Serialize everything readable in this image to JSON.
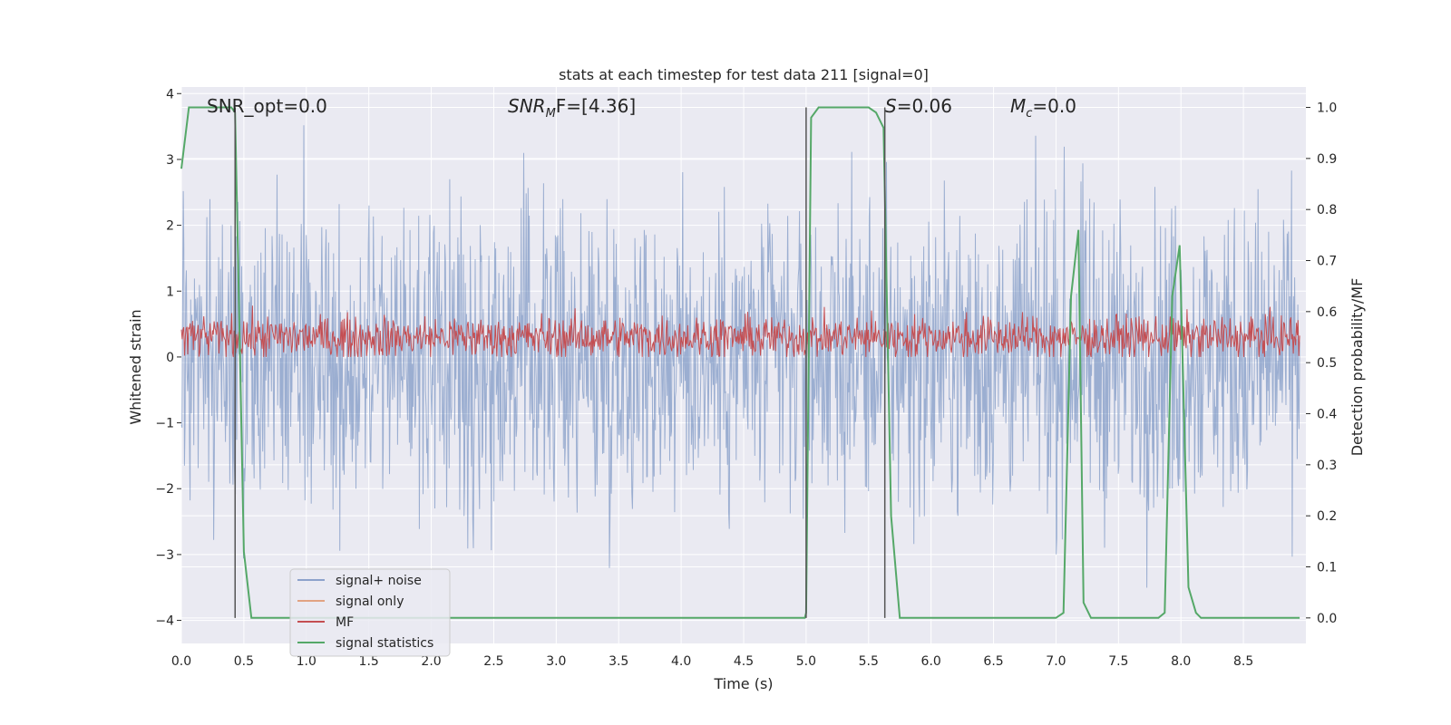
{
  "chart_data": {
    "type": "line",
    "title": "stats at each timestep for test data 211 [signal=0]",
    "xlabel": "Time (s)",
    "ylabel_left": "Whitened strain",
    "ylabel_right": "Detection probability/MF",
    "xlim": [
      0.0,
      9.0
    ],
    "ylim_left": [
      -4.35,
      4.1
    ],
    "ylim_right": [
      -0.05,
      1.04
    ],
    "grid": true,
    "background": "#eaeaf2",
    "x_ticks": [
      "0.0",
      "0.5",
      "1.0",
      "1.5",
      "2.0",
      "2.5",
      "3.0",
      "3.5",
      "4.0",
      "4.5",
      "5.0",
      "5.5",
      "6.0",
      "6.5",
      "7.0",
      "7.5",
      "8.0",
      "8.5"
    ],
    "y_ticks_left": [
      "−4",
      "−3",
      "−2",
      "−1",
      "0",
      "1",
      "2",
      "3",
      "4"
    ],
    "y_ticks_right": [
      "0.0",
      "0.1",
      "0.2",
      "0.3",
      "0.4",
      "0.5",
      "0.6",
      "0.7",
      "0.8",
      "0.9",
      "1.0"
    ],
    "annotations": {
      "snr_opt": "SNR_opt=0.0",
      "snr_mf_main": "SNR",
      "snr_mf_sub": "M",
      "snr_mf_tail": "F=[4.36]",
      "s_var": "S",
      "s_tail": "=0.06",
      "mc_var": "M",
      "mc_sub": "c",
      "mc_tail": "=0.0"
    },
    "vertical_lines": [
      0.43,
      5.0,
      5.63
    ],
    "series": [
      {
        "name": "signal+ noise",
        "color": "#4c72b0",
        "axis": "left",
        "range_approx": [
          -3.7,
          3.8
        ]
      },
      {
        "name": "signal only",
        "color": "#dd8452",
        "axis": "left",
        "values": []
      },
      {
        "name": "MF",
        "color": "#c44e52",
        "axis": "left",
        "range_approx": [
          0.0,
          0.85
        ]
      },
      {
        "name": "signal statistics",
        "color": "#55a868",
        "axis": "right",
        "x": [
          0.0,
          0.06,
          0.4,
          0.43,
          0.47,
          0.5,
          0.56,
          4.99,
          5.0,
          5.04,
          5.1,
          5.5,
          5.56,
          5.62,
          5.68,
          5.75,
          7.0,
          7.06,
          7.12,
          7.18,
          7.22,
          7.28,
          7.82,
          7.87,
          7.93,
          7.99,
          8.06,
          8.12,
          8.16,
          8.95
        ],
        "values": [
          0.88,
          1.0,
          1.0,
          0.99,
          0.5,
          0.13,
          0.0,
          0.0,
          0.01,
          0.98,
          1.0,
          1.0,
          0.99,
          0.96,
          0.2,
          0.0,
          0.0,
          0.01,
          0.63,
          0.76,
          0.03,
          0.0,
          0.0,
          0.01,
          0.63,
          0.73,
          0.06,
          0.01,
          0.0,
          0.0
        ]
      }
    ],
    "legend": {
      "placement": "lower-left",
      "entries": [
        "signal+ noise",
        "signal only",
        "MF",
        "signal statistics"
      ]
    }
  }
}
